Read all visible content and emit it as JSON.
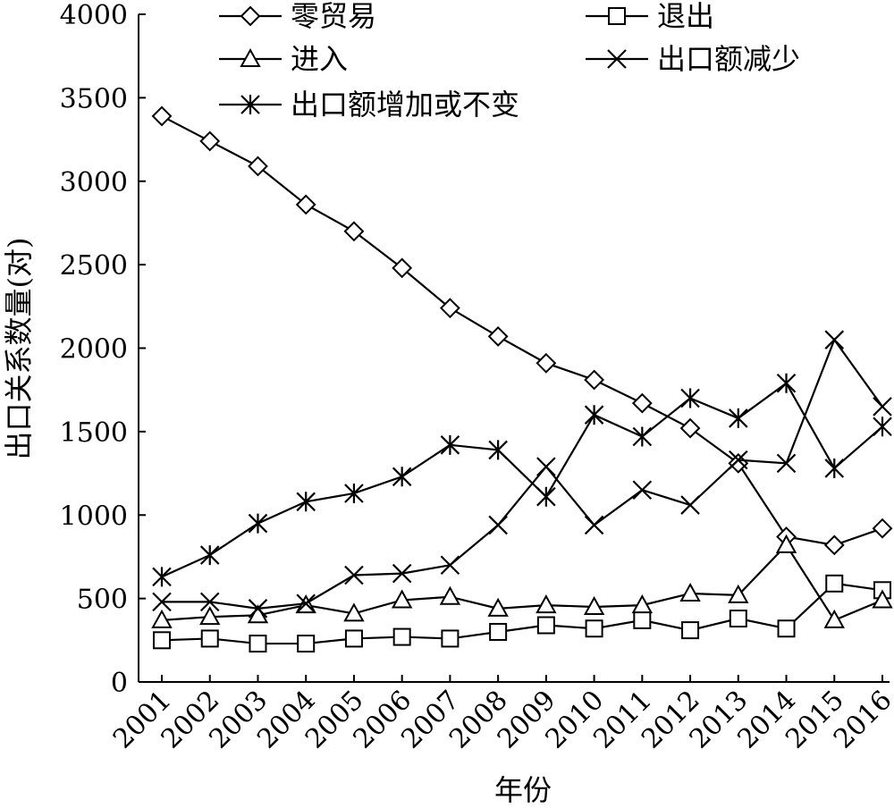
{
  "chart_data": {
    "type": "line",
    "title": "",
    "xlabel": "年份",
    "ylabel": "出口关系数量(对)",
    "ylim": [
      0,
      4000
    ],
    "yticks": [
      0,
      500,
      1000,
      1500,
      2000,
      2500,
      3000,
      3500,
      4000
    ],
    "grid": false,
    "legend_position": "top",
    "categories": [
      "2001",
      "2002",
      "2003",
      "2004",
      "2005",
      "2006",
      "2007",
      "2008",
      "2009",
      "2010",
      "2011",
      "2012",
      "2013",
      "2014",
      "2015",
      "2016"
    ],
    "series": [
      {
        "name": "零贸易",
        "marker": "diamond",
        "values": [
          3390,
          3240,
          3090,
          2860,
          2700,
          2480,
          2240,
          2070,
          1910,
          1810,
          1670,
          1520,
          1310,
          870,
          820,
          920
        ]
      },
      {
        "name": "退出",
        "marker": "square",
        "values": [
          250,
          260,
          230,
          230,
          260,
          270,
          260,
          300,
          340,
          320,
          370,
          310,
          380,
          320,
          590,
          550
        ]
      },
      {
        "name": "进入",
        "marker": "triangle",
        "values": [
          370,
          390,
          400,
          460,
          410,
          490,
          510,
          440,
          460,
          450,
          460,
          530,
          520,
          820,
          370,
          490
        ]
      },
      {
        "name": "出口额减少",
        "marker": "x",
        "values": [
          480,
          480,
          440,
          470,
          640,
          650,
          700,
          940,
          1290,
          940,
          1150,
          1060,
          1330,
          1310,
          2050,
          1650
        ]
      },
      {
        "name": "出口额增加或不变",
        "marker": "asterisk",
        "values": [
          630,
          760,
          950,
          1080,
          1130,
          1230,
          1420,
          1390,
          1110,
          1600,
          1470,
          1700,
          1580,
          1790,
          1280,
          1530
        ]
      }
    ]
  }
}
